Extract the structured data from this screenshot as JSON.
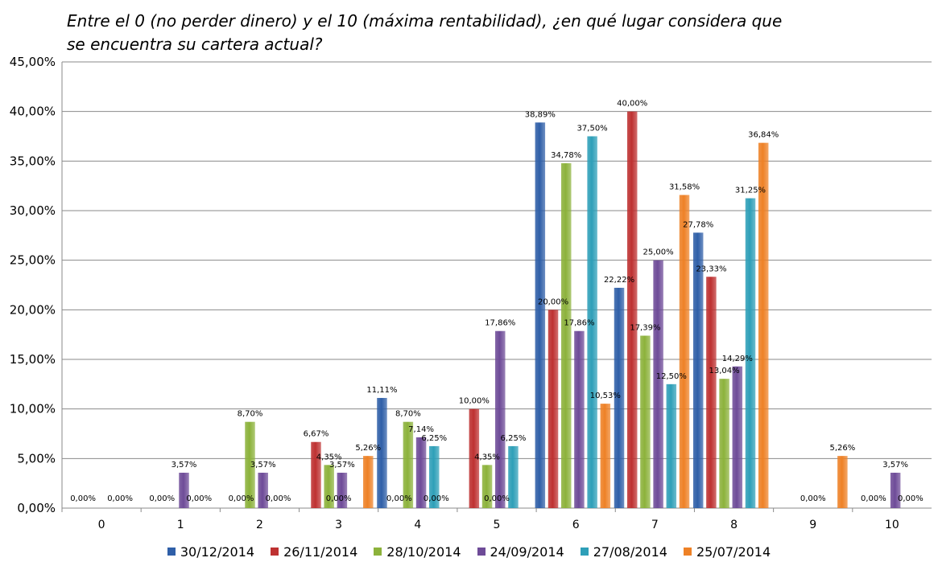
{
  "chart_data": {
    "type": "bar",
    "title": "Entre el 0 (no perder dinero) y el 10 (máxima rentabilidad), ¿en qué lugar considera que se encuentra su cartera actual?",
    "xlabel": "",
    "ylabel": "",
    "ylim": [
      0,
      45
    ],
    "yticks": [
      "0,00%",
      "5,00%",
      "10,00%",
      "15,00%",
      "20,00%",
      "25,00%",
      "30,00%",
      "35,00%",
      "40,00%",
      "45,00%"
    ],
    "grid": true,
    "legend_position": "bottom",
    "categories": [
      "0",
      "1",
      "2",
      "3",
      "4",
      "5",
      "6",
      "7",
      "8",
      "9",
      "10"
    ],
    "series": [
      {
        "name": "30/12/2014",
        "color": "#2F5FA8",
        "values": [
          null,
          null,
          null,
          null,
          11.11,
          null,
          38.89,
          22.22,
          27.78,
          null,
          null
        ],
        "labels": [
          "",
          "",
          "",
          "",
          "11,11%",
          "",
          "38,89%",
          "22,22%",
          "27,78%",
          "",
          ""
        ]
      },
      {
        "name": "26/11/2014",
        "color": "#BE3131",
        "values": [
          null,
          null,
          null,
          6.67,
          null,
          10.0,
          20.0,
          40.0,
          23.33,
          null,
          null
        ],
        "labels": [
          "",
          "",
          "",
          "6,67%",
          "",
          "10,00%",
          "20,00%",
          "40,00%",
          "23,33%",
          "",
          ""
        ]
      },
      {
        "name": "28/10/2014",
        "color": "#8CB23B",
        "values": [
          null,
          null,
          8.7,
          4.35,
          8.7,
          4.35,
          34.78,
          17.39,
          13.04,
          null,
          null
        ],
        "labels": [
          "",
          "",
          "8,70%",
          "4,35%",
          "8,70%",
          "4,35%",
          "34,78%",
          "17,39%",
          "13,04%",
          "",
          ""
        ]
      },
      {
        "name": "24/09/2014",
        "color": "#6E4B98",
        "values": [
          null,
          3.57,
          3.57,
          3.57,
          7.14,
          17.86,
          17.86,
          25.0,
          14.29,
          null,
          3.57
        ],
        "labels": [
          "",
          "3,57%",
          "3,57%",
          "3,57%",
          "7,14%",
          "17,86%",
          "17,86%",
          "25,00%",
          "14,29%",
          "",
          "3,57%"
        ]
      },
      {
        "name": "27/08/2014",
        "color": "#2E9FB8",
        "values": [
          null,
          null,
          null,
          null,
          6.25,
          6.25,
          37.5,
          12.5,
          31.25,
          null,
          null
        ],
        "labels": [
          "",
          "",
          "",
          "",
          "6,25%",
          "6,25%",
          "37,50%",
          "12,50%",
          "31,25%",
          "",
          ""
        ]
      },
      {
        "name": "25/07/2014",
        "color": "#EE8126",
        "values": [
          null,
          null,
          null,
          5.26,
          null,
          null,
          10.53,
          31.58,
          36.84,
          5.26,
          null
        ],
        "labels": [
          "",
          "",
          "",
          "5,26%",
          "",
          "",
          "10,53%",
          "31,58%",
          "36,84%",
          "5,26%",
          ""
        ]
      }
    ],
    "zero_labels": [
      {
        "category": "0",
        "text": "0,00%"
      },
      {
        "category": "0",
        "text": "0,00%"
      },
      {
        "category": "1",
        "text": "0,00%"
      },
      {
        "category": "1",
        "text": "0,00%"
      },
      {
        "category": "2",
        "text": "0,00%"
      },
      {
        "category": "2",
        "text": "0,00%"
      },
      {
        "category": "3",
        "text": "0,00%"
      },
      {
        "category": "4",
        "text": "0,00%"
      },
      {
        "category": "4",
        "text": "0,00%"
      },
      {
        "category": "5",
        "text": "0,00%"
      },
      {
        "category": "9",
        "text": "0,00%"
      },
      {
        "category": "10",
        "text": "0,00%"
      },
      {
        "category": "10",
        "text": "0,00%"
      }
    ]
  }
}
